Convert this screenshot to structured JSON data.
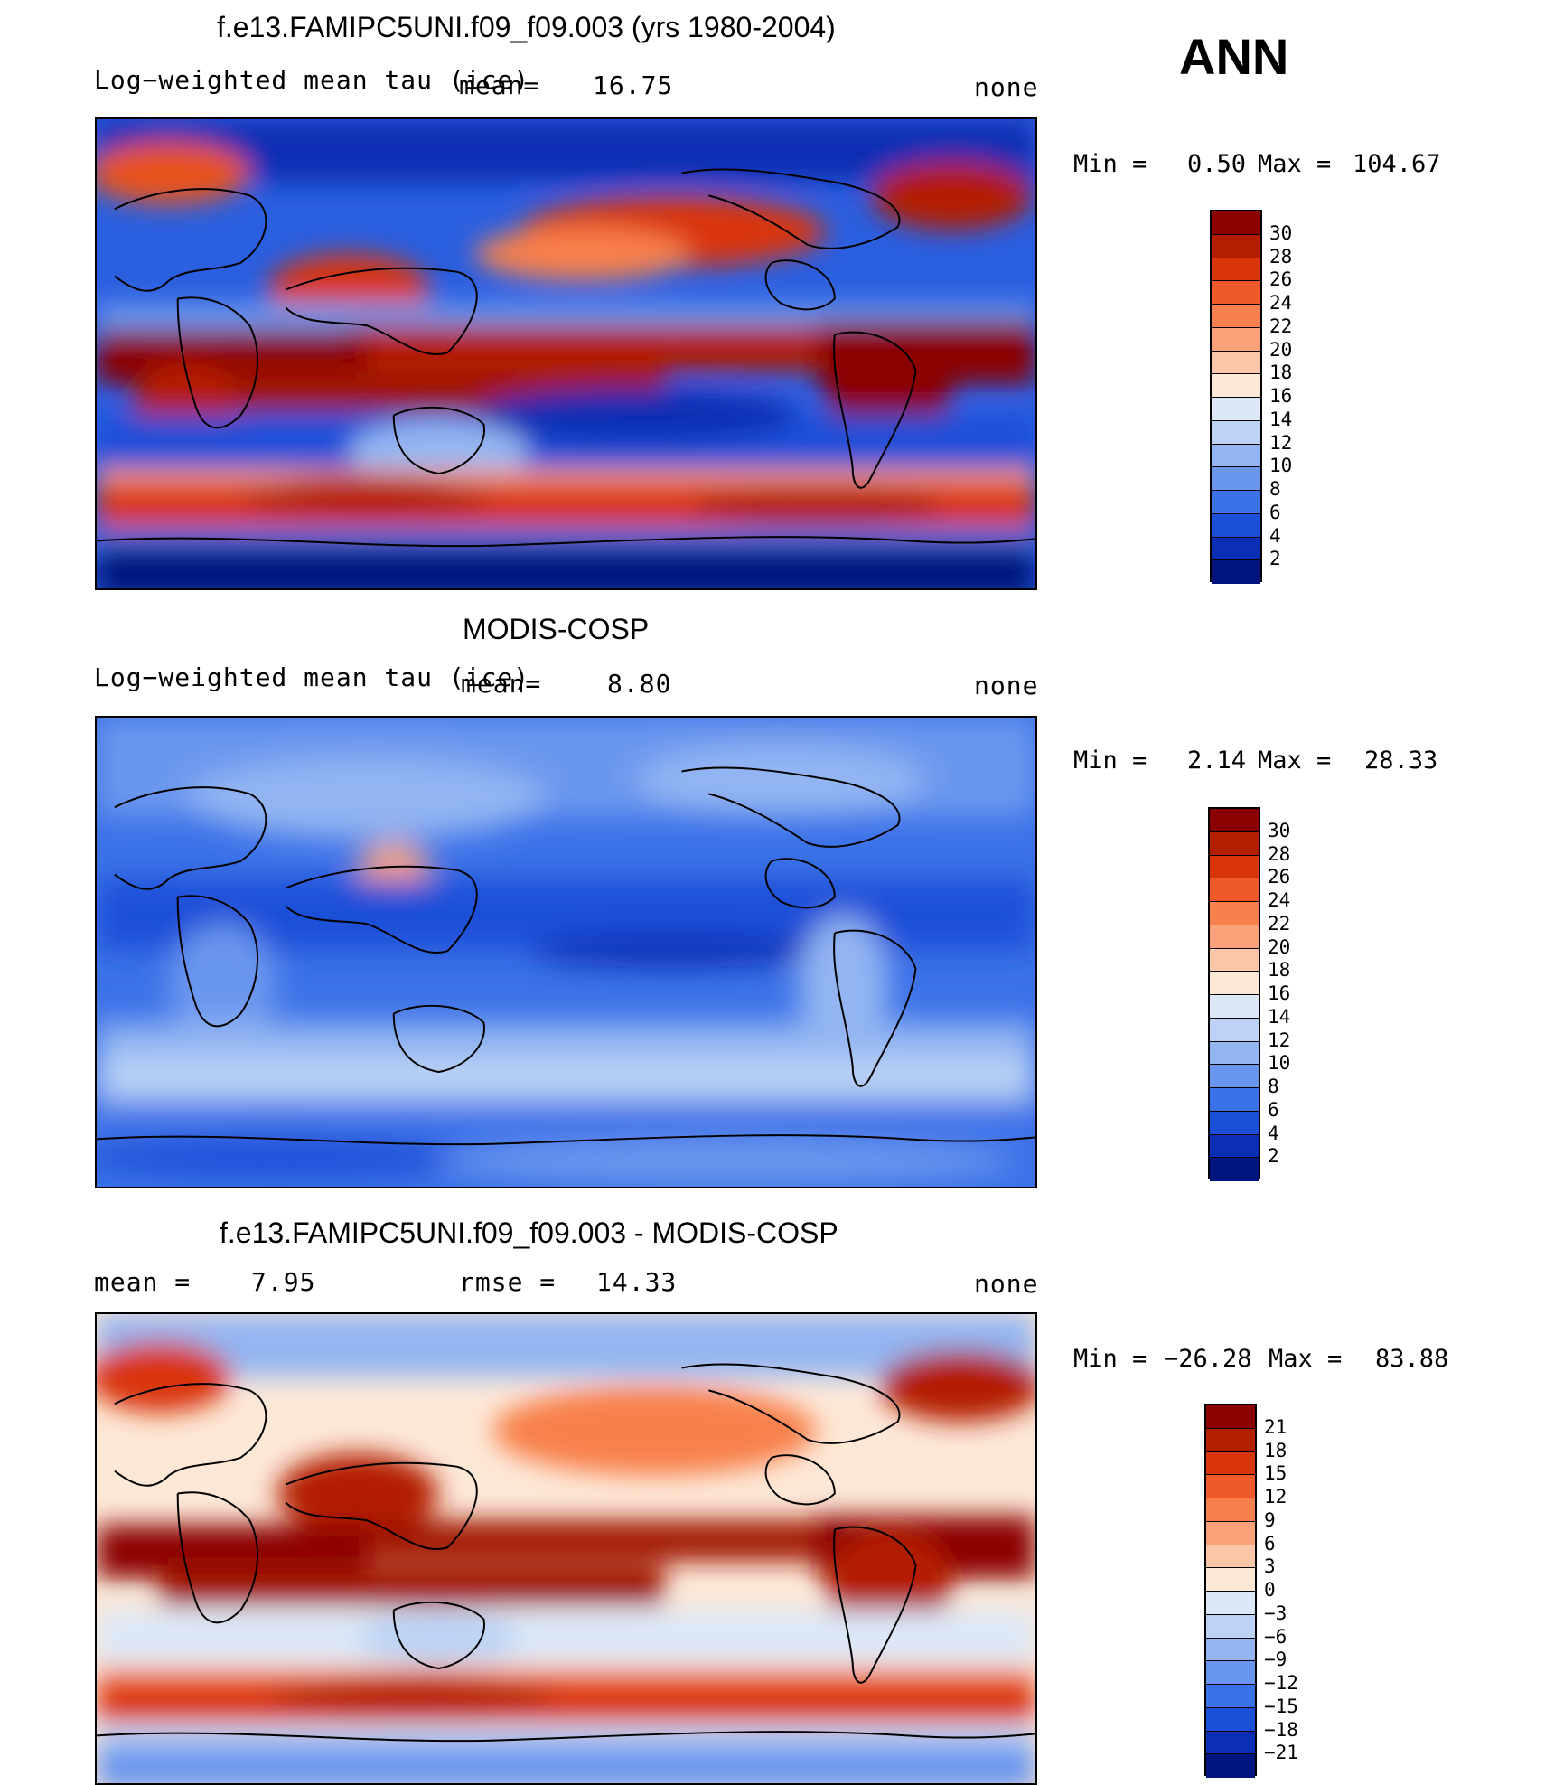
{
  "season": "ANN",
  "chart_data": [
    {
      "type": "heatmap",
      "title": "f.e13.FAMIPC5UNI.f09_f09.003 (yrs 1980-2004)",
      "variable": "Log−weighted mean tau (ice)",
      "mean_label": "mean=",
      "mean": "16.75",
      "units": "none",
      "min_label": "Min =",
      "min": "0.50",
      "max_label": "Max =",
      "max": "104.67",
      "colorbar_levels": [
        "30",
        "28",
        "26",
        "24",
        "22",
        "20",
        "18",
        "16",
        "14",
        "12",
        "10",
        "8",
        "6",
        "4",
        "2"
      ],
      "colors": [
        "#8b0000",
        "#b31e00",
        "#d9350a",
        "#f05a28",
        "#f8804c",
        "#fba27a",
        "#fcc7a8",
        "#fde8d6",
        "#dce8f8",
        "#bcd3f5",
        "#93b5f2",
        "#6a97ee",
        "#3c72e8",
        "#1b4fd8",
        "#0a2fb4",
        "#00167e"
      ]
    },
    {
      "type": "heatmap",
      "title": "MODIS-COSP",
      "variable": "Log−weighted mean tau (ice)",
      "mean_label": "mean=",
      "mean": "8.80",
      "units": "none",
      "min_label": "Min =",
      "min": "2.14",
      "max_label": "Max =",
      "max": "28.33",
      "colorbar_levels": [
        "30",
        "28",
        "26",
        "24",
        "22",
        "20",
        "18",
        "16",
        "14",
        "12",
        "10",
        "8",
        "6",
        "4",
        "2"
      ],
      "colors": [
        "#8b0000",
        "#b31e00",
        "#d9350a",
        "#f05a28",
        "#f8804c",
        "#fba27a",
        "#fcc7a8",
        "#fde8d6",
        "#dce8f8",
        "#bcd3f5",
        "#93b5f2",
        "#6a97ee",
        "#3c72e8",
        "#1b4fd8",
        "#0a2fb4",
        "#00167e"
      ]
    },
    {
      "type": "heatmap",
      "title": "f.e13.FAMIPC5UNI.f09_f09.003 - MODIS-COSP",
      "mean_label": "mean =",
      "mean": "7.95",
      "rmse_label": "rmse =",
      "rmse": "14.33",
      "units": "none",
      "min_label": "Min =",
      "min": "−26.28",
      "max_label": "Max =",
      "max": "83.88",
      "colorbar_levels": [
        "21",
        "18",
        "15",
        "12",
        "9",
        "6",
        "3",
        "0",
        "−3",
        "−6",
        "−9",
        "−12",
        "−15",
        "−18",
        "−21"
      ],
      "colors": [
        "#8b0000",
        "#b31e00",
        "#d9350a",
        "#f05a28",
        "#f8804c",
        "#fba27a",
        "#fcc7a8",
        "#fde8d6",
        "#dce8f8",
        "#bcd3f5",
        "#93b5f2",
        "#6a97ee",
        "#3c72e8",
        "#1b4fd8",
        "#0a2fb4",
        "#00167e"
      ]
    }
  ]
}
